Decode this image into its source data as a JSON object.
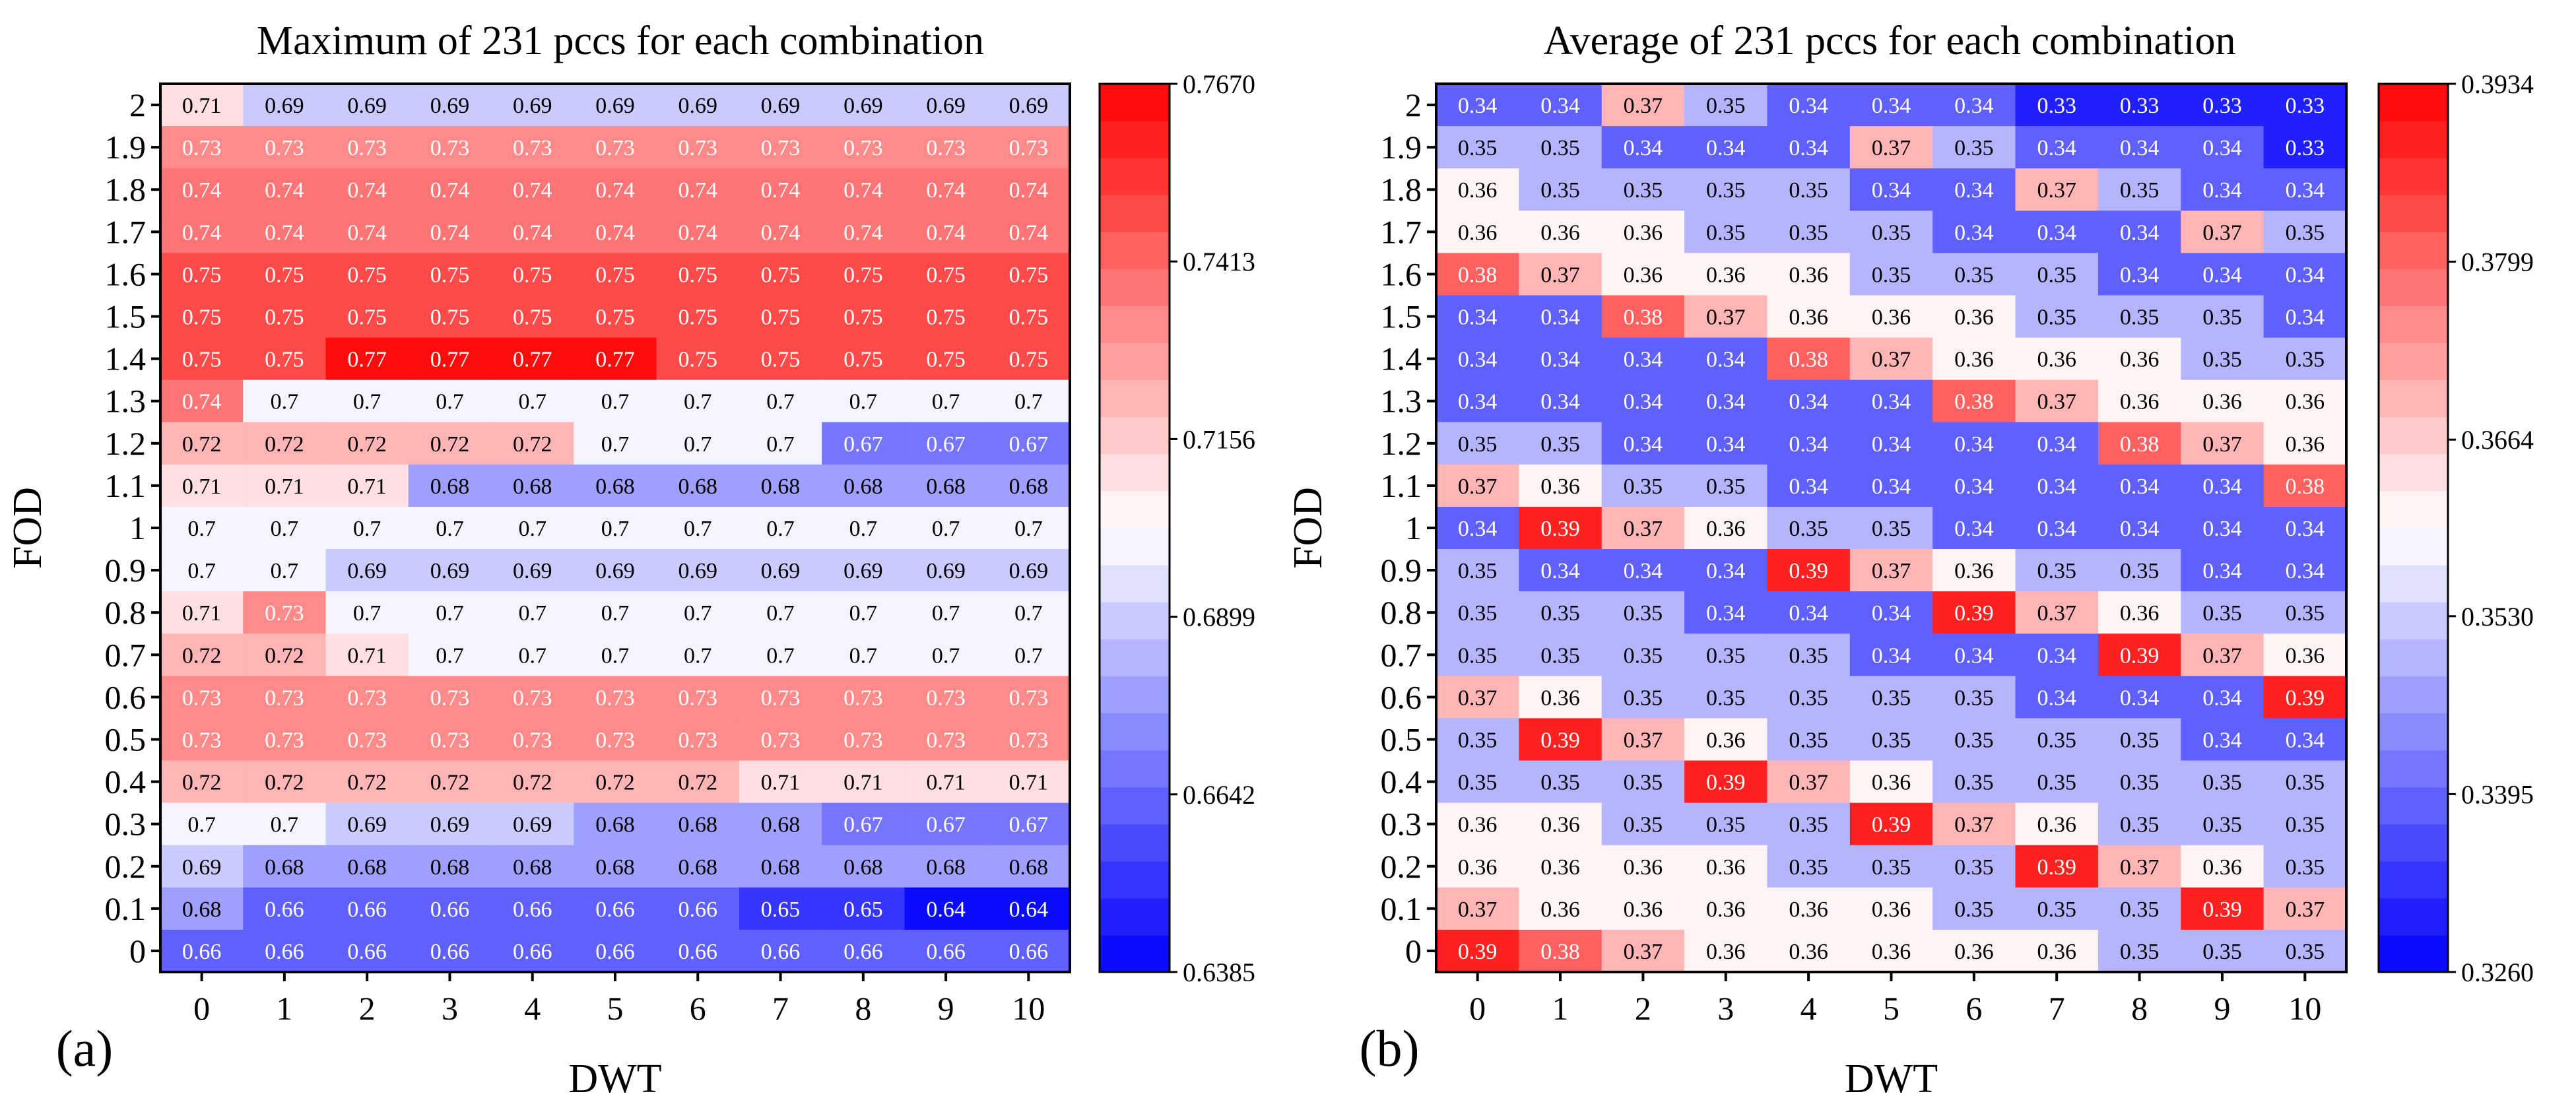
{
  "chart_data": [
    {
      "type": "heatmap",
      "panel_label": "(a)",
      "title": "Maximum of 231 pccs for each combination",
      "xlabel": "DWT",
      "ylabel": "FOD",
      "x_ticks": [
        "0",
        "1",
        "2",
        "3",
        "4",
        "5",
        "6",
        "7",
        "8",
        "9",
        "10"
      ],
      "y_ticks": [
        "2",
        "1.9",
        "1.8",
        "1.7",
        "1.6",
        "1.5",
        "1.4",
        "1.3",
        "1.2",
        "1.1",
        "1",
        "0.9",
        "0.8",
        "0.7",
        "0.6",
        "0.5",
        "0.4",
        "0.3",
        "0.2",
        "0.1",
        "0"
      ],
      "values": [
        [
          0.71,
          0.69,
          0.69,
          0.69,
          0.69,
          0.69,
          0.69,
          0.69,
          0.69,
          0.69,
          0.69
        ],
        [
          0.73,
          0.73,
          0.73,
          0.73,
          0.73,
          0.73,
          0.73,
          0.73,
          0.73,
          0.73,
          0.73
        ],
        [
          0.74,
          0.74,
          0.74,
          0.74,
          0.74,
          0.74,
          0.74,
          0.74,
          0.74,
          0.74,
          0.74
        ],
        [
          0.74,
          0.74,
          0.74,
          0.74,
          0.74,
          0.74,
          0.74,
          0.74,
          0.74,
          0.74,
          0.74
        ],
        [
          0.75,
          0.75,
          0.75,
          0.75,
          0.75,
          0.75,
          0.75,
          0.75,
          0.75,
          0.75,
          0.75
        ],
        [
          0.75,
          0.75,
          0.75,
          0.75,
          0.75,
          0.75,
          0.75,
          0.75,
          0.75,
          0.75,
          0.75
        ],
        [
          0.75,
          0.75,
          0.77,
          0.77,
          0.77,
          0.77,
          0.75,
          0.75,
          0.75,
          0.75,
          0.75
        ],
        [
          0.74,
          0.7,
          0.7,
          0.7,
          0.7,
          0.7,
          0.7,
          0.7,
          0.7,
          0.7,
          0.7
        ],
        [
          0.72,
          0.72,
          0.72,
          0.72,
          0.72,
          0.7,
          0.7,
          0.7,
          0.67,
          0.67,
          0.67
        ],
        [
          0.71,
          0.71,
          0.71,
          0.68,
          0.68,
          0.68,
          0.68,
          0.68,
          0.68,
          0.68,
          0.68
        ],
        [
          0.7,
          0.7,
          0.7,
          0.7,
          0.7,
          0.7,
          0.7,
          0.7,
          0.7,
          0.7,
          0.7
        ],
        [
          0.7,
          0.7,
          0.69,
          0.69,
          0.69,
          0.69,
          0.69,
          0.69,
          0.69,
          0.69,
          0.69
        ],
        [
          0.71,
          0.73,
          0.7,
          0.7,
          0.7,
          0.7,
          0.7,
          0.7,
          0.7,
          0.7,
          0.7
        ],
        [
          0.72,
          0.72,
          0.71,
          0.7,
          0.7,
          0.7,
          0.7,
          0.7,
          0.7,
          0.7,
          0.7
        ],
        [
          0.73,
          0.73,
          0.73,
          0.73,
          0.73,
          0.73,
          0.73,
          0.73,
          0.73,
          0.73,
          0.73
        ],
        [
          0.73,
          0.73,
          0.73,
          0.73,
          0.73,
          0.73,
          0.73,
          0.73,
          0.73,
          0.73,
          0.73
        ],
        [
          0.72,
          0.72,
          0.72,
          0.72,
          0.72,
          0.72,
          0.72,
          0.71,
          0.71,
          0.71,
          0.71
        ],
        [
          0.7,
          0.7,
          0.69,
          0.69,
          0.69,
          0.68,
          0.68,
          0.68,
          0.67,
          0.67,
          0.67
        ],
        [
          0.69,
          0.68,
          0.68,
          0.68,
          0.68,
          0.68,
          0.68,
          0.68,
          0.68,
          0.68,
          0.68
        ],
        [
          0.68,
          0.66,
          0.66,
          0.66,
          0.66,
          0.66,
          0.66,
          0.65,
          0.65,
          0.64,
          0.64
        ],
        [
          0.66,
          0.66,
          0.66,
          0.66,
          0.66,
          0.66,
          0.66,
          0.66,
          0.66,
          0.66,
          0.66
        ]
      ],
      "colorbar": {
        "min": 0.6385,
        "max": 0.767,
        "tick_labels": [
          "0.7670",
          "0.7413",
          "0.7156",
          "0.6899",
          "0.6642",
          "0.6385"
        ],
        "tick_values": [
          0.767,
          0.7413,
          0.7156,
          0.6899,
          0.6642,
          0.6385
        ],
        "low_color": "#0000ff",
        "mid_color": "#ffffff",
        "high_color": "#ff0000",
        "levels": 24
      }
    },
    {
      "type": "heatmap",
      "panel_label": "(b)",
      "title": "Average of 231 pccs for each combination",
      "xlabel": "DWT",
      "ylabel": "FOD",
      "x_ticks": [
        "0",
        "1",
        "2",
        "3",
        "4",
        "5",
        "6",
        "7",
        "8",
        "9",
        "10"
      ],
      "y_ticks": [
        "2",
        "1.9",
        "1.8",
        "1.7",
        "1.6",
        "1.5",
        "1.4",
        "1.3",
        "1.2",
        "1.1",
        "1",
        "0.9",
        "0.8",
        "0.7",
        "0.6",
        "0.5",
        "0.4",
        "0.3",
        "0.2",
        "0.1",
        "0"
      ],
      "values": [
        [
          0.34,
          0.34,
          0.37,
          0.35,
          0.34,
          0.34,
          0.34,
          0.33,
          0.33,
          0.33,
          0.33
        ],
        [
          0.35,
          0.35,
          0.34,
          0.34,
          0.34,
          0.37,
          0.35,
          0.34,
          0.34,
          0.34,
          0.33
        ],
        [
          0.36,
          0.35,
          0.35,
          0.35,
          0.35,
          0.34,
          0.34,
          0.37,
          0.35,
          0.34,
          0.34
        ],
        [
          0.36,
          0.36,
          0.36,
          0.35,
          0.35,
          0.35,
          0.34,
          0.34,
          0.34,
          0.37,
          0.35
        ],
        [
          0.38,
          0.37,
          0.36,
          0.36,
          0.36,
          0.35,
          0.35,
          0.35,
          0.34,
          0.34,
          0.34
        ],
        [
          0.34,
          0.34,
          0.38,
          0.37,
          0.36,
          0.36,
          0.36,
          0.35,
          0.35,
          0.35,
          0.34
        ],
        [
          0.34,
          0.34,
          0.34,
          0.34,
          0.38,
          0.37,
          0.36,
          0.36,
          0.36,
          0.35,
          0.35
        ],
        [
          0.34,
          0.34,
          0.34,
          0.34,
          0.34,
          0.34,
          0.38,
          0.37,
          0.36,
          0.36,
          0.36
        ],
        [
          0.35,
          0.35,
          0.34,
          0.34,
          0.34,
          0.34,
          0.34,
          0.34,
          0.38,
          0.37,
          0.36
        ],
        [
          0.37,
          0.36,
          0.35,
          0.35,
          0.34,
          0.34,
          0.34,
          0.34,
          0.34,
          0.34,
          0.38
        ],
        [
          0.34,
          0.39,
          0.37,
          0.36,
          0.35,
          0.35,
          0.34,
          0.34,
          0.34,
          0.34,
          0.34
        ],
        [
          0.35,
          0.34,
          0.34,
          0.34,
          0.39,
          0.37,
          0.36,
          0.35,
          0.35,
          0.34,
          0.34
        ],
        [
          0.35,
          0.35,
          0.35,
          0.34,
          0.34,
          0.34,
          0.39,
          0.37,
          0.36,
          0.35,
          0.35
        ],
        [
          0.35,
          0.35,
          0.35,
          0.35,
          0.35,
          0.34,
          0.34,
          0.34,
          0.39,
          0.37,
          0.36
        ],
        [
          0.37,
          0.36,
          0.35,
          0.35,
          0.35,
          0.35,
          0.35,
          0.34,
          0.34,
          0.34,
          0.39
        ],
        [
          0.35,
          0.39,
          0.37,
          0.36,
          0.35,
          0.35,
          0.35,
          0.35,
          0.35,
          0.34,
          0.34
        ],
        [
          0.35,
          0.35,
          0.35,
          0.39,
          0.37,
          0.36,
          0.35,
          0.35,
          0.35,
          0.35,
          0.35
        ],
        [
          0.36,
          0.36,
          0.35,
          0.35,
          0.35,
          0.39,
          0.37,
          0.36,
          0.35,
          0.35,
          0.35
        ],
        [
          0.36,
          0.36,
          0.36,
          0.36,
          0.35,
          0.35,
          0.35,
          0.39,
          0.37,
          0.36,
          0.35
        ],
        [
          0.37,
          0.36,
          0.36,
          0.36,
          0.36,
          0.36,
          0.35,
          0.35,
          0.35,
          0.39,
          0.37
        ],
        [
          0.39,
          0.38,
          0.37,
          0.36,
          0.36,
          0.36,
          0.36,
          0.36,
          0.35,
          0.35,
          0.35
        ]
      ],
      "colorbar": {
        "min": 0.326,
        "max": 0.3934,
        "tick_labels": [
          "0.3934",
          "0.3799",
          "0.3664",
          "0.3530",
          "0.3395",
          "0.3260"
        ],
        "tick_values": [
          0.3934,
          0.3799,
          0.3664,
          0.353,
          0.3395,
          0.326
        ],
        "low_color": "#0000ff",
        "mid_color": "#ffffff",
        "high_color": "#ff0000",
        "levels": 24
      }
    }
  ]
}
